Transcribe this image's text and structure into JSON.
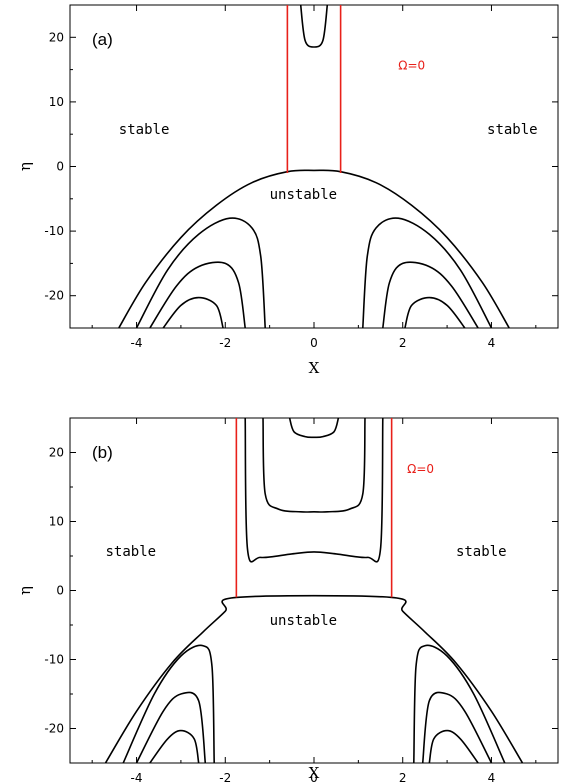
{
  "colors": {
    "contour": "#000000",
    "omega_line": "#e8201a"
  },
  "chart_data": [
    {
      "type": "line",
      "panel_label": "(a)",
      "xlabel": "X",
      "ylabel": "η",
      "xlim": [
        -5.5,
        5.5
      ],
      "ylim": [
        -25,
        25
      ],
      "xticks": [
        -4,
        -2,
        0,
        2,
        4
      ],
      "yticks": [
        -20,
        -10,
        0,
        10,
        20
      ],
      "xtick_labels": [
        "-4",
        "-2",
        "0",
        "2",
        "4"
      ],
      "ytick_labels": [
        "-20",
        "-10",
        "0",
        "10",
        "20"
      ],
      "grid": false,
      "annotations": [
        {
          "text": "stable",
          "x": -4.4,
          "y": 5
        },
        {
          "text": "stable",
          "x": 3.9,
          "y": 5
        },
        {
          "text": "unstable",
          "x": -1.0,
          "y": -5
        },
        {
          "text": "Ω=0",
          "x": 1.9,
          "y": 15
        }
      ],
      "omega_zero_lines": [
        {
          "x": [
            -0.6,
            -0.6
          ],
          "y": [
            -1,
            25
          ]
        },
        {
          "x": [
            0.6,
            0.6
          ],
          "y": [
            -1,
            25
          ]
        }
      ],
      "contours": [
        {
          "x": [
            -4.4,
            -3.8,
            -3.0,
            -2.2,
            -1.4,
            -0.6,
            0.0,
            0.6,
            1.4,
            2.2,
            3.0,
            3.8,
            4.4
          ],
          "y": [
            -25,
            -18,
            -11,
            -6,
            -2.5,
            -0.8,
            -0.6,
            -0.8,
            -2.5,
            -6,
            -11,
            -18,
            -25
          ]
        },
        {
          "x": [
            -0.3,
            -0.2,
            0.0,
            0.2,
            0.3
          ],
          "y": [
            25,
            19.5,
            18.5,
            19.5,
            25
          ]
        },
        {
          "x": [
            -4.0,
            -3.3,
            -2.6,
            -1.9,
            -1.4,
            -1.2,
            -1.1
          ],
          "y": [
            -25,
            -16,
            -10.5,
            -8,
            -9.5,
            -14,
            -25
          ]
        },
        {
          "x": [
            1.1,
            1.2,
            1.4,
            1.9,
            2.6,
            3.3,
            4.0
          ],
          "y": [
            -25,
            -14,
            -9.5,
            -8,
            -10.5,
            -16,
            -25
          ]
        },
        {
          "x": [
            -3.7,
            -3.1,
            -2.6,
            -2.0,
            -1.7,
            -1.55
          ],
          "y": [
            -25,
            -18.5,
            -15.5,
            -15,
            -18,
            -25
          ]
        },
        {
          "x": [
            1.55,
            1.7,
            2.0,
            2.6,
            3.1,
            3.7
          ],
          "y": [
            -25,
            -18,
            -15,
            -15.5,
            -18.5,
            -25
          ]
        },
        {
          "x": [
            -3.4,
            -3.0,
            -2.6,
            -2.2,
            -2.05
          ],
          "y": [
            -25,
            -21.5,
            -20.3,
            -21.5,
            -25
          ]
        },
        {
          "x": [
            2.05,
            2.2,
            2.6,
            3.0,
            3.4
          ],
          "y": [
            -25,
            -21.5,
            -20.3,
            -21.5,
            -25
          ]
        }
      ]
    },
    {
      "type": "line",
      "panel_label": "(b)",
      "xlabel": "X",
      "ylabel": "η",
      "xlim": [
        -5.5,
        5.5
      ],
      "ylim": [
        -25,
        25
      ],
      "xticks": [
        -4,
        -2,
        0,
        2,
        4
      ],
      "yticks": [
        -20,
        -10,
        0,
        10,
        20
      ],
      "xtick_labels": [
        "-4",
        "-2",
        "0",
        "2",
        "4"
      ],
      "ytick_labels": [
        "-20",
        "-10",
        "0",
        "10",
        "20"
      ],
      "grid": false,
      "annotations": [
        {
          "text": "stable",
          "x": -4.7,
          "y": 5
        },
        {
          "text": "stable",
          "x": 3.2,
          "y": 5
        },
        {
          "text": "unstable",
          "x": -1.0,
          "y": -5
        },
        {
          "text": "Ω=0",
          "x": 2.1,
          "y": 17
        }
      ],
      "omega_zero_lines": [
        {
          "x": [
            -1.75,
            -1.75
          ],
          "y": [
            -1,
            25
          ]
        },
        {
          "x": [
            1.75,
            1.75
          ],
          "y": [
            -1,
            25
          ]
        }
      ],
      "contours": [
        {
          "x": [
            -4.7,
            -4.0,
            -3.2,
            -2.5,
            -2.0,
            -1.75,
            1.75,
            2.0,
            2.5,
            3.2,
            4.0,
            4.7
          ],
          "y": [
            -25,
            -17.5,
            -10.5,
            -6,
            -3,
            -1,
            -1,
            -3,
            -6,
            -10.5,
            -17.5,
            -25
          ]
        },
        {
          "x": [
            -1.55,
            -1.5,
            -1.2,
            -0.5,
            0.0,
            0.5,
            1.2,
            1.5,
            1.55
          ],
          "y": [
            25,
            6,
            4.8,
            5.3,
            5.6,
            5.3,
            4.8,
            6,
            25
          ]
        },
        {
          "x": [
            -1.15,
            -1.1,
            -0.8,
            -0.3,
            0.0,
            0.3,
            0.8,
            1.1,
            1.15
          ],
          "y": [
            25,
            14,
            11.8,
            11.4,
            11.4,
            11.4,
            11.8,
            14,
            25
          ]
        },
        {
          "x": [
            -0.55,
            -0.45,
            -0.2,
            0.0,
            0.2,
            0.45,
            0.55
          ],
          "y": [
            25,
            23,
            22.3,
            22.2,
            22.3,
            23,
            25
          ]
        },
        {
          "x": [
            -4.3,
            -3.6,
            -3.0,
            -2.5,
            -2.3,
            -2.25
          ],
          "y": [
            -25,
            -15,
            -9.5,
            -8,
            -11,
            -25
          ]
        },
        {
          "x": [
            2.25,
            2.3,
            2.5,
            3.0,
            3.6,
            4.3
          ],
          "y": [
            -25,
            -11,
            -8,
            -9.5,
            -15,
            -25
          ]
        },
        {
          "x": [
            -4.0,
            -3.4,
            -3.0,
            -2.6,
            -2.45
          ],
          "y": [
            -25,
            -17.5,
            -15,
            -16,
            -25
          ]
        },
        {
          "x": [
            2.45,
            2.6,
            3.0,
            3.4,
            4.0
          ],
          "y": [
            -25,
            -16,
            -15,
            -17.5,
            -25
          ]
        },
        {
          "x": [
            -3.7,
            -3.3,
            -3.0,
            -2.7,
            -2.6
          ],
          "y": [
            -25,
            -21.5,
            -20.3,
            -21.5,
            -25
          ]
        },
        {
          "x": [
            2.6,
            2.7,
            3.0,
            3.3,
            3.7
          ],
          "y": [
            -25,
            -21.5,
            -20.3,
            -21.5,
            -25
          ]
        }
      ]
    }
  ]
}
